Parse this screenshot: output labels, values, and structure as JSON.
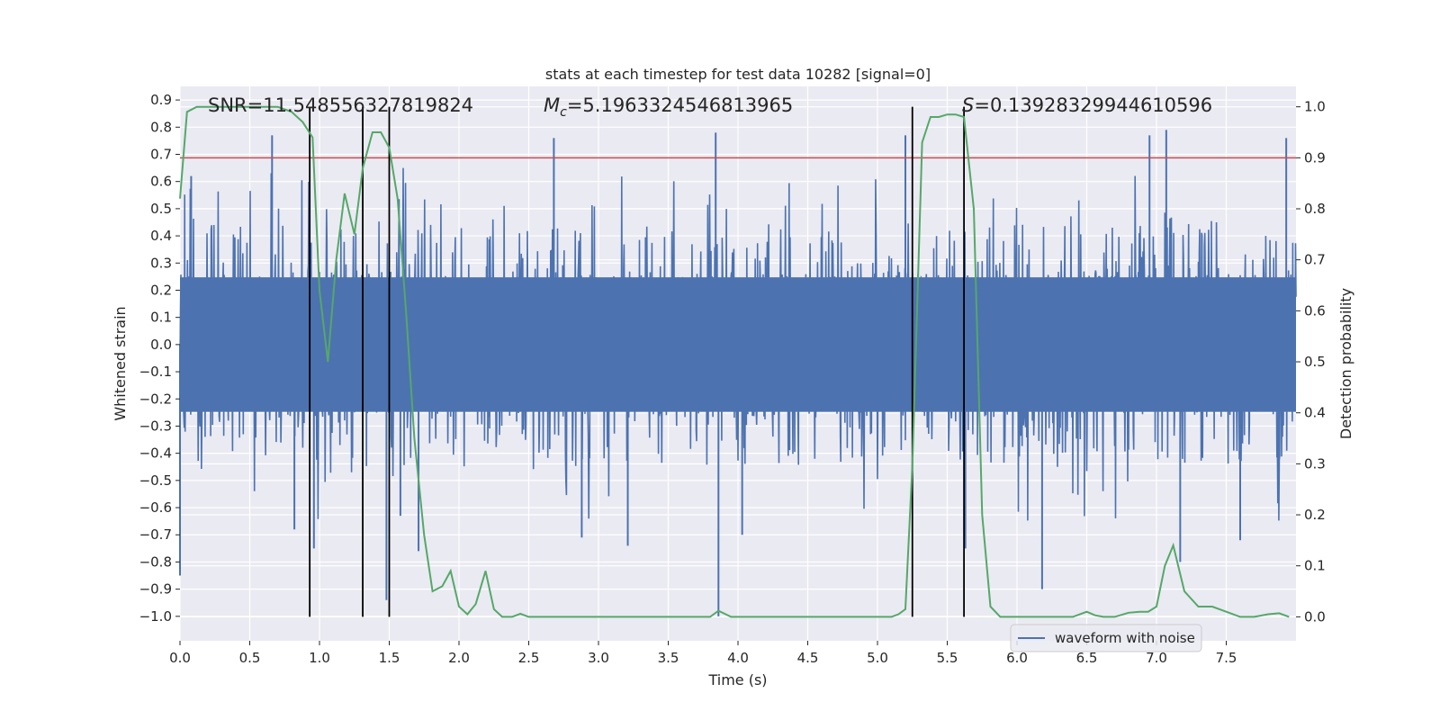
{
  "chart_data": {
    "type": "line",
    "title": "stats at each timestep for test data 10282 [signal=0]",
    "xlabel": "Time (s)",
    "ylabel": "Whitened strain",
    "y2label": "Detection probability",
    "xlim": [
      0.0,
      8.0
    ],
    "ylim": [
      -1.09,
      0.95
    ],
    "y2lim": [
      -0.047,
      1.04
    ],
    "x_ticks": [
      "0.0",
      "0.5",
      "1.0",
      "1.5",
      "2.0",
      "2.5",
      "3.0",
      "3.5",
      "4.0",
      "4.5",
      "5.0",
      "5.5",
      "6.0",
      "6.5",
      "7.0",
      "7.5"
    ],
    "y_ticks": [
      "0.9",
      "0.8",
      "0.7",
      "0.6",
      "0.5",
      "0.4",
      "0.3",
      "0.2",
      "0.1",
      "0.0",
      "-0.1",
      "-0.2",
      "-0.3",
      "-0.4",
      "-0.5",
      "-0.6",
      "-0.7",
      "-0.8",
      "-0.9",
      "-1.0"
    ],
    "y2_ticks": [
      "1.0",
      "0.9",
      "0.8",
      "0.7",
      "0.6",
      "0.5",
      "0.4",
      "0.3",
      "0.2",
      "0.1",
      "0.0"
    ],
    "grid": true,
    "legend": {
      "location": "lower-right",
      "entries": [
        "waveform with noise"
      ]
    },
    "annotations": {
      "snr": "SNR=11.548556327819824",
      "mc_symbol": "M",
      "mc_sub": "c",
      "mc_value": "=5.1963324546813965",
      "s_symbol": "S",
      "s_value": "=0.13928329944610596"
    },
    "threshold": {
      "y2": 0.9,
      "color": "#c44e52"
    },
    "vertical_lines_x": [
      0.93,
      1.31,
      1.5,
      5.25,
      5.62
    ],
    "waveform": {
      "name": "waveform with noise",
      "color": "#4c72b0",
      "typical_max": 0.45,
      "typical_min": -0.45,
      "peaks": [
        {
          "x": 0.0,
          "y": -0.85
        },
        {
          "x": 0.08,
          "y": 0.62
        },
        {
          "x": 0.66,
          "y": 0.77
        },
        {
          "x": 0.82,
          "y": -0.68
        },
        {
          "x": 0.96,
          "y": -0.75
        },
        {
          "x": 1.48,
          "y": -0.94
        },
        {
          "x": 1.58,
          "y": -0.63
        },
        {
          "x": 1.71,
          "y": -0.76
        },
        {
          "x": 2.68,
          "y": 0.76
        },
        {
          "x": 2.88,
          "y": -0.71
        },
        {
          "x": 3.21,
          "y": -0.74
        },
        {
          "x": 3.84,
          "y": 0.78
        },
        {
          "x": 3.86,
          "y": -1.0
        },
        {
          "x": 4.03,
          "y": -0.7
        },
        {
          "x": 5.2,
          "y": 0.77
        },
        {
          "x": 5.63,
          "y": -0.75
        },
        {
          "x": 6.18,
          "y": -0.9
        },
        {
          "x": 6.95,
          "y": 0.77
        },
        {
          "x": 7.07,
          "y": 0.79
        },
        {
          "x": 7.17,
          "y": -0.8
        },
        {
          "x": 7.6,
          "y": -0.72
        },
        {
          "x": 7.93,
          "y": 0.76
        }
      ]
    },
    "probability": {
      "color": "#55a868",
      "x": [
        0.0,
        0.05,
        0.12,
        0.2,
        0.3,
        0.4,
        0.5,
        0.6,
        0.7,
        0.8,
        0.88,
        0.95,
        1.0,
        1.06,
        1.12,
        1.18,
        1.25,
        1.31,
        1.38,
        1.44,
        1.5,
        1.56,
        1.62,
        1.68,
        1.75,
        1.81,
        1.88,
        1.94,
        2.0,
        2.06,
        2.12,
        2.19,
        2.25,
        2.31,
        2.38,
        2.44,
        2.5,
        2.6,
        2.8,
        3.0,
        3.2,
        3.4,
        3.6,
        3.8,
        3.86,
        3.95,
        4.1,
        4.3,
        4.5,
        4.7,
        4.9,
        5.1,
        5.15,
        5.2,
        5.25,
        5.32,
        5.38,
        5.44,
        5.5,
        5.56,
        5.62,
        5.69,
        5.75,
        5.81,
        5.88,
        5.94,
        6.0,
        6.2,
        6.4,
        6.5,
        6.56,
        6.62,
        6.7,
        6.8,
        6.88,
        6.94,
        7.0,
        7.06,
        7.12,
        7.2,
        7.3,
        7.4,
        7.5,
        7.6,
        7.7,
        7.8,
        7.88,
        7.95
      ],
      "y": [
        0.82,
        0.99,
        1.0,
        1.0,
        1.0,
        1.0,
        1.0,
        1.0,
        1.0,
        0.99,
        0.97,
        0.94,
        0.64,
        0.5,
        0.7,
        0.83,
        0.75,
        0.88,
        0.95,
        0.95,
        0.92,
        0.82,
        0.6,
        0.35,
        0.16,
        0.05,
        0.06,
        0.09,
        0.02,
        0.005,
        0.025,
        0.09,
        0.015,
        0.0,
        0.0,
        0.006,
        0.0,
        0.0,
        0.0,
        0.0,
        0.0,
        0.0,
        0.0,
        0.0,
        0.012,
        0.0,
        0.0,
        0.0,
        0.0,
        0.0,
        0.0,
        0.0,
        0.005,
        0.015,
        0.3,
        0.93,
        0.98,
        0.98,
        0.985,
        0.985,
        0.98,
        0.8,
        0.2,
        0.02,
        0.0,
        0.0,
        0.0,
        0.0,
        0.0,
        0.01,
        0.003,
        0.0,
        0.0,
        0.008,
        0.01,
        0.01,
        0.02,
        0.1,
        0.14,
        0.05,
        0.02,
        0.02,
        0.01,
        0.0,
        0.0,
        0.005,
        0.007,
        0.0
      ]
    }
  }
}
